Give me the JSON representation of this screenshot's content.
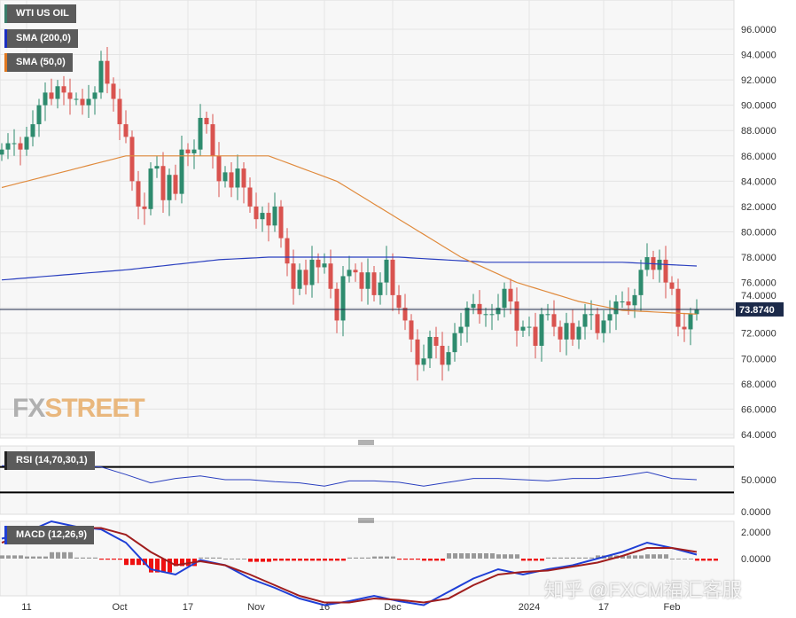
{
  "legend": {
    "main": "WTI US OIL",
    "sma200": "SMA (200,0)",
    "sma50": "SMA (50,0)",
    "rsi": "RSI (14,70,30,1)",
    "macd": "MACD (12,26,9)"
  },
  "watermark": {
    "fx": "FX",
    "street": "STREET",
    "zh": "知乎 @FXCM福汇客服"
  },
  "colors": {
    "up": "#2e8b6e",
    "down": "#d9534f",
    "sma200": "#2a3fbf",
    "sma50": "#e08a3c",
    "macd": "#1f3fd6",
    "signal": "#a01e1e",
    "histPos": "#999999",
    "histNeg": "#ee1111"
  },
  "chart_data": [
    {
      "type": "candlestick",
      "title": "WTI US OIL",
      "ylim": [
        64,
        96
      ],
      "yticks": [
        "96.0000",
        "94.0000",
        "92.0000",
        "90.0000",
        "88.0000",
        "86.0000",
        "84.0000",
        "82.0000",
        "80.0000",
        "78.0000",
        "76.0000",
        "74.0000",
        "72.0000",
        "70.0000",
        "68.0000",
        "66.0000",
        "64.0000"
      ],
      "ytick_values": [
        96,
        94,
        92,
        90,
        88,
        86,
        84,
        82,
        80,
        78,
        76,
        74,
        72,
        70,
        68,
        66,
        64
      ],
      "xticks": [
        {
          "label": "11",
          "index": 4
        },
        {
          "label": "Oct",
          "index": 19
        },
        {
          "label": "17",
          "index": 30
        },
        {
          "label": "Nov",
          "index": 41
        },
        {
          "label": "16",
          "index": 52
        },
        {
          "label": "Dec",
          "index": 63
        },
        {
          "label": "2024",
          "index": 85
        },
        {
          "label": "17",
          "index": 97
        },
        {
          "label": "Feb",
          "index": 108
        }
      ],
      "current_price": 73.874,
      "current_label": "73.8740",
      "closes": [
        86.5,
        87,
        87,
        86.5,
        87.5,
        88.5,
        90,
        91,
        90.5,
        91.5,
        91,
        90.5,
        90.5,
        90,
        90.5,
        91,
        93.5,
        91.7,
        90.5,
        88.5,
        87.5,
        84,
        82,
        81.8,
        85,
        85.2,
        82.5,
        84.5,
        83,
        86.5,
        86.2,
        86.5,
        89,
        88.5,
        86,
        84,
        84.7,
        83.5,
        85,
        83.5,
        82,
        81,
        81.5,
        80.5,
        82,
        79.5,
        77.5,
        75.5,
        77,
        75.8,
        77.8,
        77.2,
        77.5,
        75.5,
        73,
        76.5,
        77,
        76.8,
        75.5,
        76.8,
        75,
        76,
        77.8,
        75,
        74,
        73,
        71.5,
        69.5,
        70,
        71.7,
        71,
        69.5,
        70.5,
        72,
        72.5,
        74,
        74.3,
        73.5,
        73.5,
        73.5,
        74,
        75.5,
        74.5,
        72.2,
        72.5,
        72.5,
        71,
        73.5,
        73.5,
        72.5,
        71.5,
        72.8,
        71.5,
        72.5,
        73.5,
        73.5,
        72,
        73,
        73.5,
        74.5,
        74.5,
        74.2,
        75,
        77,
        78,
        77,
        77.8,
        76,
        75.5,
        72.5,
        72.3,
        73.5,
        73.874
      ],
      "sma200": {
        "index": [
          0,
          20,
          35,
          43,
          64,
          78,
          100,
          112
        ],
        "values": [
          76.2,
          77,
          77.8,
          78,
          78,
          77.6,
          77.6,
          77.3
        ]
      },
      "sma50": {
        "index": [
          0,
          20,
          36,
          43,
          54,
          64,
          74,
          83,
          93,
          100,
          112
        ],
        "values": [
          83.5,
          86,
          86,
          86,
          84,
          81,
          78,
          76,
          74.5,
          73.8,
          73.5
        ]
      }
    },
    {
      "type": "line",
      "title": "RSI (14,70,30,1)",
      "ylim": [
        0,
        100
      ],
      "yticks": [
        "50.0000",
        "0.0000"
      ],
      "levels": [
        70,
        30
      ],
      "step": 4,
      "values": [
        72,
        72,
        72,
        72,
        70,
        58,
        45,
        52,
        56,
        50,
        50,
        47,
        45,
        40,
        48,
        48,
        46,
        40,
        46,
        52,
        52,
        50,
        48,
        52,
        52,
        56,
        62,
        52,
        50
      ]
    },
    {
      "type": "line",
      "title": "MACD (12,26,9)",
      "yticks": [
        "2.0000",
        "0.0000"
      ],
      "step": 4,
      "macd": [
        1.5,
        2.0,
        2.8,
        2.4,
        2.2,
        1.2,
        -0.8,
        -1.2,
        -0.1,
        -0.5,
        -1.5,
        -2.2,
        -3.0,
        -3.5,
        -3.2,
        -2.8,
        -3.2,
        -3.5,
        -2.5,
        -1.5,
        -0.8,
        -1.2,
        -0.8,
        -0.5,
        0.0,
        0.5,
        1.2,
        0.8,
        0.3
      ],
      "signal": [
        1.2,
        1.8,
        2.2,
        2.3,
        2.3,
        1.8,
        0.5,
        -0.5,
        -0.2,
        -0.5,
        -1.2,
        -2.0,
        -2.8,
        -3.3,
        -3.3,
        -3.0,
        -3.1,
        -3.3,
        -3.0,
        -2.0,
        -1.2,
        -1.0,
        -0.9,
        -0.6,
        -0.3,
        0.2,
        0.8,
        0.8,
        0.5
      ]
    }
  ]
}
